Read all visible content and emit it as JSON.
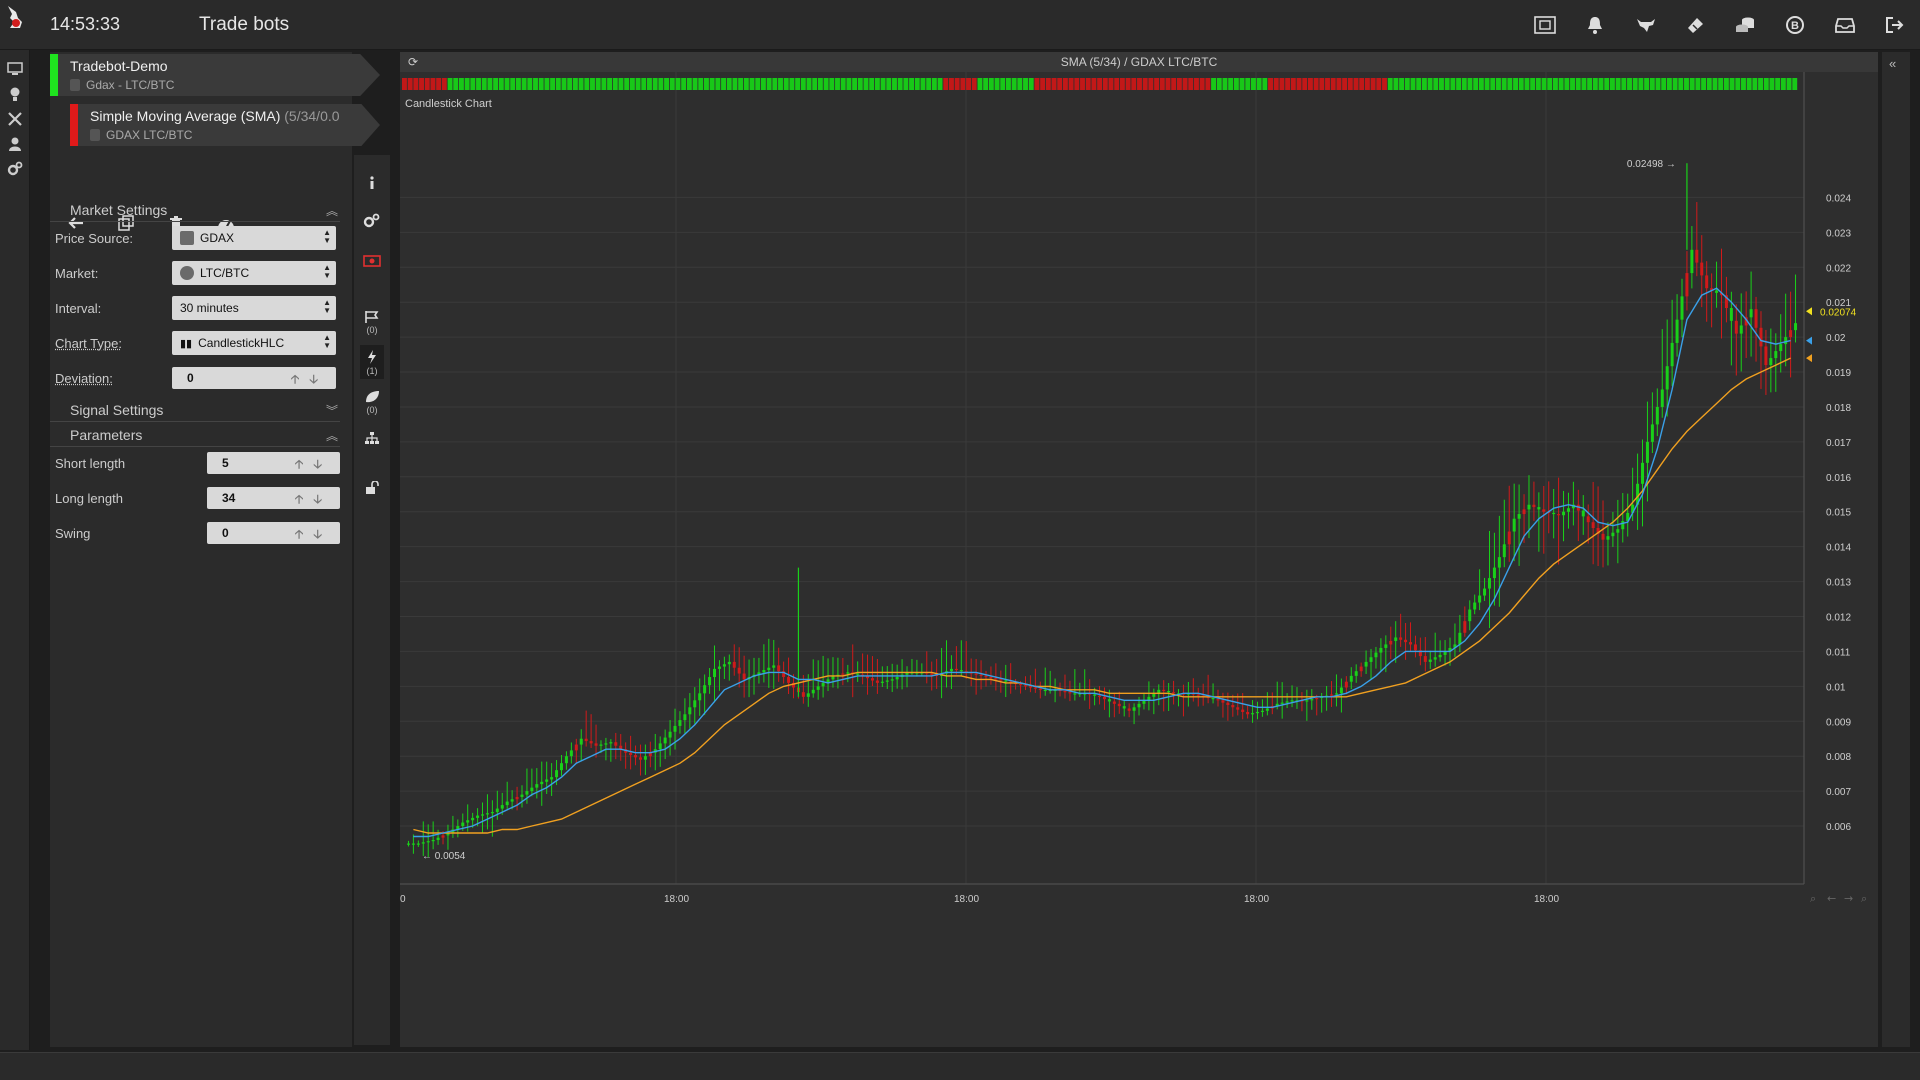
{
  "header": {
    "time": "14:53:33",
    "title": "Trade bots",
    "icons": [
      "screenshot-icon",
      "bell-icon",
      "bull-icon",
      "ticket-icon",
      "coins-icon",
      "bitcoin-icon",
      "inbox-icon",
      "logout-icon"
    ]
  },
  "rail": {
    "icons": [
      "monitor-icon",
      "bulb-icon",
      "tools-icon",
      "user-icon",
      "settings-icon"
    ]
  },
  "bots": [
    {
      "name": "Tradebot-Demo",
      "sub": "Gdax - LTC/BTC",
      "color": "#1fe31f"
    },
    {
      "name": "Simple Moving Average (SMA)",
      "params": " (5/34/0.0",
      "sub": "GDAX LTC/BTC",
      "color": "#e01a1a"
    }
  ],
  "actions": [
    "back-icon",
    "copy-icon",
    "trash-icon",
    "gauge-icon"
  ],
  "market_settings": {
    "title": "Market Settings",
    "price_source": {
      "label": "Price Source:",
      "value": "GDAX"
    },
    "market": {
      "label": "Market:",
      "value": "LTC/BTC"
    },
    "interval": {
      "label": "Interval:",
      "value": "30 minutes"
    },
    "chart_type": {
      "label": "Chart Type:",
      "value": "CandlestickHLC"
    },
    "deviation": {
      "label": "Deviation:",
      "value": "0"
    }
  },
  "signal_settings": {
    "title": "Signal Settings"
  },
  "parameters": {
    "title": "Parameters",
    "short_length": {
      "label": "Short length",
      "value": "5"
    },
    "long_length": {
      "label": "Long length",
      "value": "34"
    },
    "swing": {
      "label": "Swing",
      "value": "0"
    }
  },
  "vtabs": [
    {
      "icon": "info-icon",
      "count": ""
    },
    {
      "icon": "gears-icon",
      "count": ""
    },
    {
      "icon": "money-icon",
      "count": ""
    },
    {
      "icon": "flag-icon",
      "count": "(0)"
    },
    {
      "icon": "lightning-icon",
      "count": "(1)"
    },
    {
      "icon": "leaf-icon",
      "count": "(0)"
    },
    {
      "icon": "hierarchy-icon",
      "count": ""
    },
    {
      "icon": "unlock-icon",
      "count": ""
    }
  ],
  "chart": {
    "title": "SMA (5/34) / GDAX LTC/BTC",
    "subtitle": "Candlestick Chart",
    "max_label": "0.02498",
    "min_label": "0.0054",
    "last_price": "0.02074",
    "x_ticks": [
      "0",
      "18:00",
      "18:00",
      "18:00",
      "18:00"
    ],
    "y_ticks": [
      "0.024",
      "0.023",
      "0.022",
      "0.021",
      "0.02",
      "0.019",
      "0.018",
      "0.017",
      "0.016",
      "0.015",
      "0.014",
      "0.013",
      "0.012",
      "0.011",
      "0.01",
      "0.009",
      "0.008",
      "0.007",
      "0.006"
    ],
    "colors": {
      "up": "#19d119",
      "down": "#d11a1a",
      "sma_short": "#3aa0e8",
      "sma_long": "#f0a020",
      "last": "#f0e020"
    }
  },
  "chart_data": {
    "type": "candlestick",
    "title": "SMA (5/34) / GDAX LTC/BTC",
    "subtitle": "Candlestick Chart",
    "xlabel": "",
    "ylabel": "",
    "ylim": [
      0.0054,
      0.0251
    ],
    "max_marker": 0.02498,
    "min_marker": 0.0054,
    "last_price": 0.02074,
    "series": [
      {
        "name": "",
        "role": "close",
        "values": [
          0.0055,
          0.0056,
          0.0058,
          0.0061,
          0.0063,
          0.0064,
          0.0067,
          0.0069,
          0.0072,
          0.0074,
          0.008,
          0.0085,
          0.0083,
          0.0084,
          0.0081,
          0.0079,
          0.0082,
          0.0087,
          0.0092,
          0.0098,
          0.0105,
          0.0107,
          0.0102,
          0.0104,
          0.0106,
          0.0101,
          0.0097,
          0.01,
          0.0103,
          0.0104,
          0.0103,
          0.0101,
          0.0102,
          0.0104,
          0.0104,
          0.0103,
          0.0105,
          0.0104,
          0.0103,
          0.0102,
          0.0101,
          0.01,
          0.0099,
          0.0099,
          0.0098,
          0.0098,
          0.0097,
          0.0095,
          0.0093,
          0.0096,
          0.0099,
          0.0098,
          0.0098,
          0.0097,
          0.0096,
          0.0094,
          0.0092,
          0.0093,
          0.0095,
          0.0096,
          0.0096,
          0.0097,
          0.0098,
          0.0103,
          0.0107,
          0.0111,
          0.0114,
          0.0112,
          0.0107,
          0.0109,
          0.0112,
          0.0122,
          0.0128,
          0.0137,
          0.0148,
          0.0152,
          0.015,
          0.0149,
          0.0152,
          0.0147,
          0.0142,
          0.0145,
          0.0152,
          0.017,
          0.0185,
          0.0205,
          0.0225,
          0.0214,
          0.0212,
          0.0201,
          0.0208,
          0.0192,
          0.0198,
          0.0204
        ]
      },
      {
        "name": "",
        "role": "sma_short",
        "values": [
          0.0057,
          0.0057,
          0.0058,
          0.0059,
          0.006,
          0.0062,
          0.0064,
          0.0066,
          0.0069,
          0.0071,
          0.0074,
          0.0078,
          0.008,
          0.0082,
          0.0082,
          0.0081,
          0.0081,
          0.0082,
          0.0085,
          0.0089,
          0.0094,
          0.0099,
          0.0101,
          0.0103,
          0.0104,
          0.0104,
          0.0102,
          0.0102,
          0.0101,
          0.0102,
          0.0103,
          0.0103,
          0.0103,
          0.0103,
          0.0103,
          0.0103,
          0.0104,
          0.0104,
          0.0104,
          0.0103,
          0.0102,
          0.0101,
          0.01,
          0.0099,
          0.0099,
          0.0098,
          0.0098,
          0.0097,
          0.0096,
          0.0096,
          0.0096,
          0.0097,
          0.0098,
          0.0098,
          0.0097,
          0.0096,
          0.0095,
          0.0094,
          0.0094,
          0.0095,
          0.0096,
          0.0097,
          0.0097,
          0.0098,
          0.01,
          0.0103,
          0.0107,
          0.011,
          0.011,
          0.011,
          0.011,
          0.0113,
          0.0118,
          0.0125,
          0.0134,
          0.0143,
          0.0148,
          0.0151,
          0.0152,
          0.0151,
          0.0147,
          0.0146,
          0.0147,
          0.0155,
          0.0168,
          0.0185,
          0.0205,
          0.0212,
          0.0214,
          0.021,
          0.0205,
          0.0199,
          0.0198,
          0.0199
        ]
      },
      {
        "name": "",
        "role": "sma_long",
        "values": [
          0.0059,
          0.0058,
          0.0058,
          0.0058,
          0.0058,
          0.0058,
          0.0059,
          0.0059,
          0.006,
          0.0061,
          0.0062,
          0.0064,
          0.0066,
          0.0068,
          0.007,
          0.0072,
          0.0074,
          0.0076,
          0.0078,
          0.0081,
          0.0085,
          0.0089,
          0.0092,
          0.0095,
          0.0098,
          0.01,
          0.0101,
          0.0102,
          0.0103,
          0.0103,
          0.0104,
          0.0104,
          0.0104,
          0.0104,
          0.0104,
          0.0104,
          0.0103,
          0.0103,
          0.0102,
          0.0102,
          0.0101,
          0.0101,
          0.01,
          0.01,
          0.0099,
          0.0099,
          0.0099,
          0.0098,
          0.0098,
          0.0098,
          0.0098,
          0.0098,
          0.0097,
          0.0097,
          0.0097,
          0.0097,
          0.0097,
          0.0097,
          0.0097,
          0.0097,
          0.0097,
          0.0097,
          0.0097,
          0.0097,
          0.0098,
          0.0099,
          0.01,
          0.0101,
          0.0103,
          0.0105,
          0.0107,
          0.011,
          0.0113,
          0.0117,
          0.0121,
          0.0126,
          0.0131,
          0.0135,
          0.0138,
          0.0141,
          0.0144,
          0.0147,
          0.0151,
          0.0156,
          0.0162,
          0.0168,
          0.0173,
          0.0177,
          0.0181,
          0.0185,
          0.0188,
          0.019,
          0.0192,
          0.0194
        ]
      }
    ],
    "signal_strip": "RRRRRRRRGGGGGGGGGGGGGGGGGGGGGGGGGGGGGGGGGGGGGGGGGGGGGGGGGGGGGGGGGGGGGGGGGGGGGGGGGGGGGGGGGGGGGGGRRRRRRGGGGGGGGGGRRRRRRRRRRRRRRRRRRRRRRRRRRRRRRRGGGGGGGGGGRRRRRRRRRRRRRRRRRRRRRGGGGGGGGGGGGGGGGGGGGGGGGGGGGGGGGGGGGGGGGGGGGGGGGGGGGGGGGGGGGGGGGGGGGGGGG"
  }
}
